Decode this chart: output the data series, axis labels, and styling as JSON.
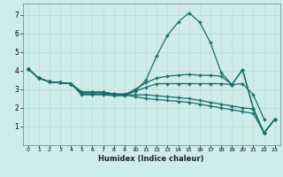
{
  "xlabel": "Humidex (Indice chaleur)",
  "bg_color": "#ceecea",
  "grid_color": "#b8ddd9",
  "line_color": "#1a6b6b",
  "xlim": [
    -0.5,
    23.5
  ],
  "ylim": [
    0,
    7.6
  ],
  "xticks": [
    0,
    1,
    2,
    3,
    4,
    5,
    6,
    7,
    8,
    9,
    10,
    11,
    12,
    13,
    14,
    15,
    16,
    17,
    18,
    19,
    20,
    21,
    22,
    23
  ],
  "yticks": [
    1,
    2,
    3,
    4,
    5,
    6,
    7
  ],
  "lines": [
    {
      "x": [
        0,
        1,
        2,
        3,
        4,
        5,
        6,
        7,
        8,
        9,
        10,
        11,
        12,
        13,
        14,
        15,
        16,
        17,
        18,
        19,
        20,
        21,
        22,
        23
      ],
      "y": [
        4.1,
        3.6,
        3.4,
        3.35,
        3.3,
        2.7,
        2.7,
        2.7,
        2.65,
        2.65,
        2.9,
        3.5,
        4.8,
        5.9,
        6.6,
        7.1,
        6.6,
        5.5,
        3.9,
        3.25,
        4.05,
        1.95,
        0.65,
        1.4
      ]
    },
    {
      "x": [
        0,
        1,
        2,
        3,
        4,
        5,
        6,
        7,
        8,
        9,
        10,
        11,
        12,
        13,
        14,
        15,
        16,
        17,
        18,
        19,
        20,
        21,
        22,
        23
      ],
      "y": [
        4.1,
        3.6,
        3.4,
        3.35,
        3.3,
        2.75,
        2.75,
        2.75,
        2.7,
        2.7,
        3.0,
        3.35,
        3.6,
        3.7,
        3.75,
        3.8,
        3.75,
        3.75,
        3.7,
        3.25,
        4.05,
        1.95,
        0.65,
        1.4
      ]
    },
    {
      "x": [
        0,
        1,
        2,
        3,
        4,
        5,
        6,
        7,
        8,
        9,
        10,
        11,
        12,
        13,
        14,
        15,
        16,
        17,
        18,
        19,
        20,
        21,
        22,
        23
      ],
      "y": [
        4.1,
        3.6,
        3.4,
        3.35,
        3.3,
        2.8,
        2.8,
        2.8,
        2.75,
        2.75,
        2.9,
        3.1,
        3.3,
        3.3,
        3.3,
        3.3,
        3.3,
        3.3,
        3.3,
        3.25,
        3.3,
        2.7,
        1.4,
        null
      ]
    },
    {
      "x": [
        0,
        1,
        2,
        3,
        4,
        5,
        6,
        7,
        8,
        9,
        10,
        11,
        12,
        13,
        14,
        15,
        16,
        17,
        18,
        19,
        20,
        21,
        22,
        23
      ],
      "y": [
        4.1,
        3.6,
        3.4,
        3.35,
        3.3,
        2.85,
        2.85,
        2.85,
        2.75,
        2.7,
        2.7,
        2.7,
        2.65,
        2.6,
        2.55,
        2.5,
        2.4,
        2.3,
        2.2,
        2.1,
        2.0,
        1.95,
        0.65,
        1.4
      ]
    },
    {
      "x": [
        0,
        1,
        2,
        3,
        4,
        5,
        6,
        7,
        8,
        9,
        10,
        11,
        12,
        13,
        14,
        15,
        16,
        17,
        18,
        19,
        20,
        21,
        22,
        23
      ],
      "y": [
        4.1,
        3.6,
        3.4,
        3.35,
        3.3,
        2.85,
        2.85,
        2.85,
        2.75,
        2.7,
        2.6,
        2.5,
        2.45,
        2.4,
        2.35,
        2.3,
        2.2,
        2.1,
        2.0,
        1.9,
        1.8,
        1.7,
        0.65,
        1.4
      ]
    }
  ]
}
